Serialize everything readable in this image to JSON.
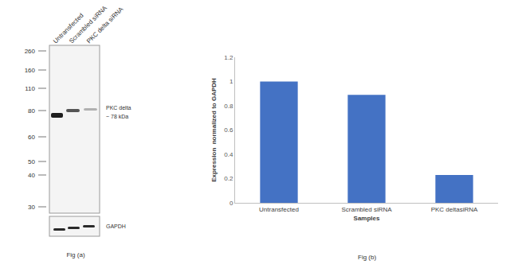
{
  "blot": {
    "lanes": [
      "Untransfected",
      "Scrambled siRNA",
      "PKC delta siRNA"
    ],
    "markers": [
      260,
      160,
      110,
      80,
      60,
      50,
      40,
      30
    ],
    "target_label": "PKC delta",
    "target_size": "~ 78 kDa",
    "loading_control": "GAPDH",
    "caption": "Fig (a)"
  },
  "chart_data": {
    "type": "bar",
    "categories": [
      "Untransfected",
      "Scrambled siRNA",
      "PKC deltasiRNA"
    ],
    "values": [
      1,
      0.89,
      0.23
    ],
    "color": "#4472c4",
    "xlabel": "Samples",
    "ylabel": "Expression  normalized to GAPDH",
    "ylim": [
      0,
      1.2
    ],
    "yticks": [
      0,
      0.2,
      0.4,
      0.6,
      0.8,
      1,
      1.2
    ],
    "grid": false,
    "annotations": [
      "Fig (b)"
    ]
  }
}
